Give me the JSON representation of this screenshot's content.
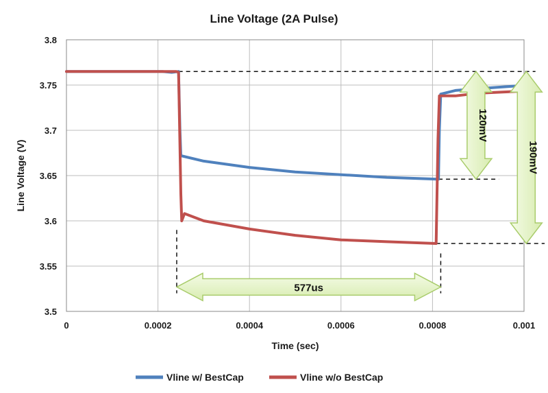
{
  "chart_data": {
    "type": "line",
    "title": "Line Voltage (2A Pulse)",
    "xlabel": "Time (sec)",
    "ylabel": "Line Voltage (V)",
    "xlim": [
      0,
      0.001
    ],
    "ylim": [
      3.5,
      3.8
    ],
    "x_ticks": [
      "0",
      "0.0002",
      "0.0004",
      "0.0006",
      "0.0008",
      "0.001"
    ],
    "y_ticks": [
      "3.5",
      "3.55",
      "3.6",
      "3.65",
      "3.7",
      "3.75",
      "3.8"
    ],
    "grid": true,
    "legend_position": "bottom",
    "series": [
      {
        "name": "Vline w/ BestCap",
        "color": "#4f81bd",
        "points": [
          [
            0,
            3.765
          ],
          [
            0.0001,
            3.765
          ],
          [
            0.00021,
            3.765
          ],
          [
            0.00023,
            3.764
          ],
          [
            0.000245,
            3.765
          ],
          [
            0.000248,
            3.7
          ],
          [
            0.00025,
            3.672
          ],
          [
            0.0003,
            3.666
          ],
          [
            0.0004,
            3.659
          ],
          [
            0.0005,
            3.654
          ],
          [
            0.0006,
            3.651
          ],
          [
            0.0007,
            3.648
          ],
          [
            0.000813,
            3.646
          ],
          [
            0.000815,
            3.7
          ],
          [
            0.000818,
            3.74
          ],
          [
            0.00085,
            3.744
          ],
          [
            0.0009,
            3.746
          ],
          [
            0.000985,
            3.749
          ]
        ]
      },
      {
        "name": "Vline w/o BestCap",
        "color": "#c0504d",
        "points": [
          [
            0,
            3.765
          ],
          [
            0.0001,
            3.765
          ],
          [
            0.00021,
            3.765
          ],
          [
            0.00024,
            3.765
          ],
          [
            0.000245,
            3.764
          ],
          [
            0.00025,
            3.63
          ],
          [
            0.000252,
            3.6
          ],
          [
            0.000258,
            3.608
          ],
          [
            0.0003,
            3.6
          ],
          [
            0.0004,
            3.591
          ],
          [
            0.0005,
            3.584
          ],
          [
            0.0006,
            3.579
          ],
          [
            0.0007,
            3.577
          ],
          [
            0.000808,
            3.575
          ],
          [
            0.000812,
            3.69
          ],
          [
            0.000815,
            3.738
          ],
          [
            0.00085,
            3.738
          ],
          [
            0.0009,
            3.741
          ],
          [
            0.000985,
            3.743
          ]
        ]
      }
    ],
    "annotations": [
      {
        "label": "577us",
        "type": "horizontal-arrow",
        "x_start": 0.000241,
        "x_end": 0.000818,
        "y": 3.527
      },
      {
        "label": "120mV",
        "type": "vertical-arrow",
        "x": 0.000895,
        "y_top": 3.765,
        "y_bottom": 3.646
      },
      {
        "label": "190mV",
        "type": "vertical-arrow",
        "x": 0.001005,
        "y_top": 3.765,
        "y_bottom": 3.575
      }
    ],
    "reference_lines": [
      {
        "y": 3.765,
        "x_start": 0.000245,
        "x_end": 0.001025
      },
      {
        "y": 3.646,
        "x_start": 0.000813,
        "x_end": 0.000945
      },
      {
        "y": 3.575,
        "x_start": 0.000808,
        "x_end": 0.001045
      },
      {
        "x": 0.000241,
        "y_start": 3.59,
        "y_end": 3.52
      },
      {
        "x": 0.000818,
        "y_start": 3.564,
        "y_end": 3.52
      }
    ],
    "annotation_fill": "#e8f5c8",
    "annotation_stroke": "#a9cc6b"
  }
}
